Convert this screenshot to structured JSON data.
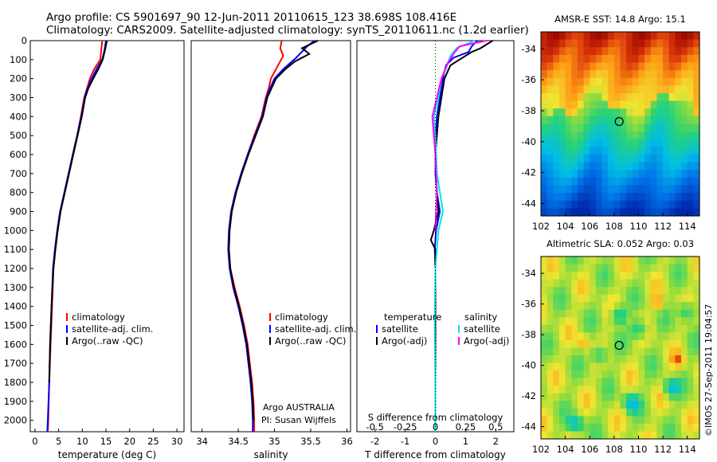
{
  "title": {
    "line1": "Argo profile: CS 5901697_90 12-Jun-2011 20110615_123 38.698S 108.416E",
    "line2": "Climatology: CARS2009. Satellite-adjusted climatology: synTS_20110611.nc (1.2d earlier)"
  },
  "footer_stamp": "©IMOS 27-Sep-2011 19:04:57",
  "credit": {
    "line1": "Argo AUSTRALIA",
    "line2": "PI: Susan Wijffels"
  },
  "colors": {
    "climatology": "#ff0000",
    "satellite": "#0000ff",
    "argo": "#000000",
    "satellite_s": "#00e5ee",
    "argo_s": "#ff00ff"
  },
  "chart_data": [
    {
      "type": "line",
      "id": "temperature",
      "xlabel": "temperature (deg C)",
      "xlim": [
        -1,
        31.5
      ],
      "ylim": [
        2060,
        0
      ],
      "xticks": [
        0,
        5,
        10,
        15,
        20,
        25,
        30
      ],
      "yticks": [
        0,
        100,
        200,
        300,
        400,
        500,
        600,
        700,
        800,
        900,
        1000,
        1100,
        1200,
        1300,
        1400,
        1500,
        1600,
        1700,
        1800,
        1900,
        2000
      ],
      "legend": [
        "climatology",
        "satellite-adj. clim.",
        "Argo(..raw -QC)"
      ],
      "series": [
        {
          "name": "climatology",
          "color": "#ff0000",
          "points": [
            [
              14.2,
              0
            ],
            [
              14.0,
              50
            ],
            [
              13.8,
              100
            ],
            [
              12.5,
              150
            ],
            [
              11.6,
              200
            ],
            [
              11.0,
              250
            ],
            [
              10.4,
              300
            ],
            [
              9.7,
              400
            ],
            [
              8.9,
              500
            ],
            [
              8.0,
              600
            ],
            [
              7.1,
              700
            ],
            [
              6.2,
              800
            ],
            [
              5.4,
              900
            ],
            [
              4.8,
              1000
            ],
            [
              4.3,
              1100
            ],
            [
              3.9,
              1200
            ],
            [
              3.6,
              1400
            ],
            [
              3.3,
              1600
            ],
            [
              3.0,
              1800
            ],
            [
              2.8,
              2000
            ],
            [
              2.7,
              2060
            ]
          ]
        },
        {
          "name": "satellite-adj. clim.",
          "color": "#0000ff",
          "points": [
            [
              15.0,
              0
            ],
            [
              14.7,
              50
            ],
            [
              14.2,
              100
            ],
            [
              13.0,
              150
            ],
            [
              12.0,
              200
            ],
            [
              11.1,
              250
            ],
            [
              10.5,
              300
            ],
            [
              9.8,
              400
            ],
            [
              8.9,
              500
            ],
            [
              8.0,
              600
            ],
            [
              7.1,
              700
            ],
            [
              6.2,
              800
            ],
            [
              5.3,
              900
            ],
            [
              4.7,
              1000
            ],
            [
              4.2,
              1100
            ],
            [
              3.8,
              1200
            ],
            [
              3.5,
              1400
            ],
            [
              3.2,
              1600
            ],
            [
              3.0,
              1800
            ],
            [
              2.7,
              2000
            ],
            [
              2.6,
              2060
            ]
          ]
        },
        {
          "name": "Argo(..raw -QC)",
          "color": "#000000",
          "points": [
            [
              15.2,
              0
            ],
            [
              14.8,
              50
            ],
            [
              14.3,
              100
            ],
            [
              13.4,
              150
            ],
            [
              12.3,
              200
            ],
            [
              11.3,
              250
            ],
            [
              10.6,
              300
            ],
            [
              9.9,
              400
            ],
            [
              9.0,
              500
            ],
            [
              8.1,
              600
            ],
            [
              7.2,
              700
            ],
            [
              6.3,
              800
            ],
            [
              5.4,
              900
            ],
            [
              4.8,
              1000
            ],
            [
              4.3,
              1100
            ],
            [
              3.9,
              1200
            ],
            [
              3.5,
              1400
            ],
            [
              3.2,
              1600
            ],
            [
              3.0,
              1800
            ]
          ]
        }
      ]
    },
    {
      "type": "line",
      "id": "salinity",
      "xlabel": "salinity",
      "xlim": [
        33.85,
        36.05
      ],
      "ylim": [
        2060,
        0
      ],
      "xticks": [
        34,
        34.5,
        35,
        35.5,
        36
      ],
      "xticklabels": [
        "34",
        "34.5",
        "35",
        "35.5",
        "36"
      ],
      "legend": [
        "climatology",
        "satellite-adj. clim.",
        "Argo(..raw -QC)"
      ],
      "series": [
        {
          "name": "climatology",
          "color": "#ff0000",
          "points": [
            [
              35.1,
              0
            ],
            [
              35.08,
              40
            ],
            [
              35.12,
              80
            ],
            [
              35.02,
              150
            ],
            [
              34.95,
              200
            ],
            [
              34.92,
              250
            ],
            [
              34.88,
              300
            ],
            [
              34.82,
              400
            ],
            [
              34.72,
              500
            ],
            [
              34.63,
              600
            ],
            [
              34.55,
              700
            ],
            [
              34.47,
              800
            ],
            [
              34.41,
              900
            ],
            [
              34.38,
              1000
            ],
            [
              34.37,
              1100
            ],
            [
              34.39,
              1200
            ],
            [
              34.45,
              1300
            ],
            [
              34.52,
              1400
            ],
            [
              34.58,
              1500
            ],
            [
              34.63,
              1600
            ],
            [
              34.66,
              1700
            ],
            [
              34.69,
              1800
            ],
            [
              34.71,
              1900
            ],
            [
              34.72,
              2000
            ],
            [
              34.72,
              2060
            ]
          ]
        },
        {
          "name": "satellite-adj. clim.",
          "color": "#0000ff",
          "points": [
            [
              35.55,
              0
            ],
            [
              35.45,
              30
            ],
            [
              35.3,
              90
            ],
            [
              35.12,
              150
            ],
            [
              35.0,
              200
            ],
            [
              34.94,
              250
            ],
            [
              34.89,
              300
            ],
            [
              34.83,
              400
            ],
            [
              34.73,
              500
            ],
            [
              34.63,
              600
            ],
            [
              34.54,
              700
            ],
            [
              34.46,
              800
            ],
            [
              34.4,
              900
            ],
            [
              34.37,
              1000
            ],
            [
              34.36,
              1100
            ],
            [
              34.38,
              1200
            ],
            [
              34.43,
              1300
            ],
            [
              34.5,
              1400
            ],
            [
              34.56,
              1500
            ],
            [
              34.61,
              1600
            ],
            [
              34.64,
              1700
            ],
            [
              34.67,
              1800
            ],
            [
              34.69,
              1900
            ],
            [
              34.7,
              2000
            ],
            [
              34.7,
              2060
            ]
          ]
        },
        {
          "name": "Argo(..raw -QC)",
          "color": "#000000",
          "points": [
            [
              35.6,
              0
            ],
            [
              35.38,
              40
            ],
            [
              35.48,
              70
            ],
            [
              35.28,
              110
            ],
            [
              35.15,
              150
            ],
            [
              35.02,
              200
            ],
            [
              34.96,
              250
            ],
            [
              34.9,
              300
            ],
            [
              34.84,
              400
            ],
            [
              34.74,
              500
            ],
            [
              34.64,
              600
            ],
            [
              34.55,
              700
            ],
            [
              34.47,
              800
            ],
            [
              34.41,
              900
            ],
            [
              34.38,
              1000
            ],
            [
              34.37,
              1100
            ],
            [
              34.39,
              1200
            ],
            [
              34.44,
              1300
            ],
            [
              34.51,
              1400
            ],
            [
              34.57,
              1500
            ],
            [
              34.62,
              1600
            ],
            [
              34.65,
              1700
            ],
            [
              34.68,
              1800
            ],
            [
              34.7,
              1900
            ],
            [
              34.71,
              2000
            ]
          ]
        }
      ]
    },
    {
      "type": "line",
      "id": "difference",
      "xlabel": "T difference from climatology",
      "xlabel_top": "S difference from climatology",
      "xlim": [
        -2.6,
        2.6
      ],
      "ylim": [
        2060,
        0
      ],
      "xticks": [
        -2,
        -1,
        0,
        1,
        2
      ],
      "s_ticklabels": [
        "-0.5",
        "-0.25",
        "0",
        "0.25",
        "0.5"
      ],
      "legend_temperature_title": "temperature",
      "legend_salinity_title": "salinity",
      "legend_temperature": [
        "satellite",
        "Argo(-adj)"
      ],
      "legend_salinity": [
        "satellite",
        "Argo(-adj)"
      ],
      "series": [
        {
          "name": "T satellite",
          "color": "#0000ff",
          "points": [
            [
              1.4,
              0
            ],
            [
              1.2,
              30
            ],
            [
              1.1,
              60
            ],
            [
              0.6,
              90
            ],
            [
              0.35,
              130
            ],
            [
              0.25,
              200
            ],
            [
              0.15,
              300
            ],
            [
              0.05,
              400
            ],
            [
              0.02,
              500
            ],
            [
              0.0,
              700
            ],
            [
              0.05,
              800
            ],
            [
              0.15,
              900
            ],
            [
              0.02,
              1000
            ],
            [
              -0.02,
              1100
            ],
            [
              0.0,
              1200
            ],
            [
              0.0,
              1500
            ],
            [
              0.0,
              1800
            ],
            [
              0.0,
              2060
            ]
          ]
        },
        {
          "name": "T Argo(-adj)",
          "color": "#000000",
          "points": [
            [
              1.9,
              0
            ],
            [
              1.5,
              40
            ],
            [
              1.2,
              60
            ],
            [
              0.8,
              100
            ],
            [
              0.5,
              130
            ],
            [
              0.3,
              200
            ],
            [
              0.2,
              300
            ],
            [
              0.1,
              400
            ],
            [
              0.05,
              500
            ],
            [
              0.0,
              600
            ],
            [
              0.05,
              800
            ],
            [
              0.1,
              900
            ],
            [
              -0.05,
              1000
            ],
            [
              -0.15,
              1050
            ],
            [
              0.0,
              1100
            ],
            [
              0.0,
              1400
            ],
            [
              0.0,
              1800
            ]
          ]
        },
        {
          "name": "S satellite",
          "color": "#00e5ee",
          "points": [
            [
              1.3,
              0
            ],
            [
              0.7,
              40
            ],
            [
              0.5,
              80
            ],
            [
              0.35,
              150
            ],
            [
              0.2,
              200
            ],
            [
              0.1,
              300
            ],
            [
              -0.05,
              400
            ],
            [
              0.0,
              500
            ],
            [
              0.05,
              700
            ],
            [
              0.2,
              850
            ],
            [
              0.25,
              900
            ],
            [
              0.1,
              1000
            ],
            [
              0.0,
              1200
            ],
            [
              -0.02,
              1500
            ],
            [
              0.0,
              1800
            ],
            [
              0.0,
              2060
            ]
          ]
        },
        {
          "name": "S Argo(-adj)",
          "color": "#ff00ff",
          "points": [
            [
              1.7,
              0
            ],
            [
              0.8,
              30
            ],
            [
              0.6,
              70
            ],
            [
              0.4,
              120
            ],
            [
              0.2,
              200
            ],
            [
              0.05,
              300
            ],
            [
              -0.1,
              400
            ],
            [
              -0.05,
              500
            ],
            [
              0.0,
              600
            ],
            [
              0.05,
              800
            ],
            [
              0.0,
              1000
            ]
          ]
        }
      ]
    },
    {
      "type": "heatmap",
      "id": "sst_map",
      "title": "AMSR-E SST: 14.8 Argo: 15.1",
      "xlim": [
        102,
        115
      ],
      "ylim": [
        -44.8,
        -32.9
      ],
      "xticks": [
        102,
        104,
        106,
        108,
        110,
        112,
        114
      ],
      "yticks": [
        -34,
        -36,
        -38,
        -40,
        -42,
        -44
      ],
      "marker": {
        "lon": 108.416,
        "lat": -38.698
      }
    },
    {
      "type": "heatmap",
      "id": "sla_map",
      "title": "Altimetric SLA: 0.052 Argo: 0.03",
      "xlim": [
        102,
        115
      ],
      "ylim": [
        -44.8,
        -32.9
      ],
      "xticks": [
        102,
        104,
        106,
        108,
        110,
        112,
        114
      ],
      "yticks": [
        -34,
        -36,
        -38,
        -40,
        -42,
        -44
      ],
      "marker": {
        "lon": 108.416,
        "lat": -38.698
      }
    }
  ]
}
